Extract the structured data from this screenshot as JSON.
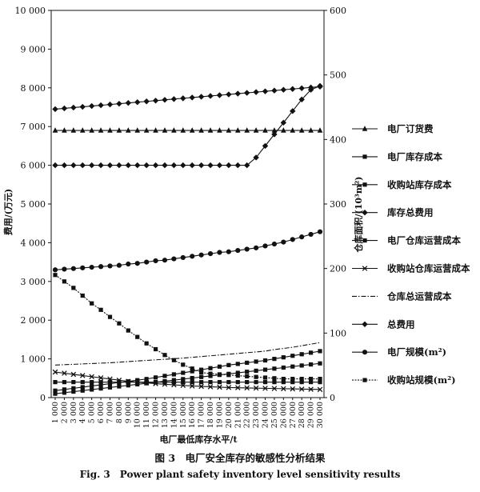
{
  "chart_data": {
    "type": "line",
    "xlabel": "电厂最低库存水平/t",
    "ylabel_left": "费用/(万元)",
    "ylabel_right": "仓库面积/(10³m²)",
    "categories": [
      "1 000",
      "2 000",
      "3 000",
      "4 000",
      "5 000",
      "6 000",
      "7 000",
      "8 000",
      "9 000",
      "10 000",
      "11 000",
      "12 000",
      "13 000",
      "14 000",
      "15 000",
      "16 000",
      "17 000",
      "18 000",
      "19 000",
      "20 000",
      "21 000",
      "22 000",
      "23 000",
      "24 000",
      "25 000",
      "26 000",
      "27 000",
      "28 000",
      "29 000",
      "30 000"
    ],
    "ylim_left": [
      0,
      10000
    ],
    "ylim_right": [
      0,
      600
    ],
    "left_ticks": [
      "0",
      "1 000",
      "2 000",
      "3 000",
      "4 000",
      "5 000",
      "6 000",
      "7 000",
      "8 000",
      "9 000",
      "10 000"
    ],
    "right_ticks": [
      "0",
      "100",
      "200",
      "300",
      "400",
      "500",
      "600"
    ],
    "legend_position": "right",
    "grid": false,
    "series": [
      {
        "name": "电厂订货费",
        "axis": "left",
        "marker": "triangle",
        "values": [
          6900,
          6900,
          6900,
          6900,
          6900,
          6900,
          6900,
          6900,
          6900,
          6900,
          6900,
          6900,
          6900,
          6900,
          6900,
          6900,
          6900,
          6900,
          6900,
          6900,
          6900,
          6900,
          6900,
          6900,
          6900,
          6900,
          6900,
          6900,
          6900,
          6900
        ]
      },
      {
        "name": "电厂库存成本",
        "axis": "left",
        "marker": "square",
        "values": [
          100,
          127,
          154,
          181,
          208,
          235,
          262,
          289,
          316,
          343,
          370,
          397,
          424,
          451,
          478,
          505,
          532,
          559,
          586,
          613,
          640,
          667,
          694,
          721,
          748,
          775,
          802,
          829,
          856,
          883
        ]
      },
      {
        "name": "收购站库存成本",
        "axis": "left",
        "marker": "square",
        "values": [
          400,
          400,
          400,
          400,
          400,
          400,
          400,
          400,
          400,
          400,
          400,
          400,
          400,
          400,
          400,
          400,
          400,
          400,
          400,
          400,
          400,
          400,
          400,
          400,
          400,
          400,
          400,
          400,
          400,
          400
        ]
      },
      {
        "name": "库存总费用",
        "axis": "left",
        "marker": "diamond",
        "values": [
          7450,
          7470,
          7490,
          7510,
          7530,
          7550,
          7570,
          7590,
          7610,
          7630,
          7650,
          7670,
          7690,
          7710,
          7730,
          7750,
          7770,
          7790,
          7810,
          7830,
          7850,
          7870,
          7890,
          7910,
          7930,
          7950,
          7970,
          7990,
          8010,
          8030
        ]
      },
      {
        "name": "电厂仓库运营成本",
        "axis": "left",
        "marker": "square",
        "values": [
          180,
          210,
          240,
          270,
          300,
          330,
          360,
          390,
          420,
          450,
          480,
          520,
          560,
          600,
          640,
          680,
          720,
          760,
          800,
          840,
          870,
          900,
          930,
          960,
          1000,
          1040,
          1080,
          1120,
          1160,
          1200
        ]
      },
      {
        "name": "收购站仓库运营成本",
        "axis": "left",
        "marker": "x",
        "values": [
          660,
          630,
          600,
          570,
          540,
          510,
          480,
          450,
          420,
          400,
          380,
          360,
          345,
          330,
          315,
          300,
          290,
          280,
          270,
          260,
          255,
          250,
          245,
          240,
          235,
          230,
          225,
          220,
          215,
          210
        ]
      },
      {
        "name": "仓库总运营成本",
        "axis": "left",
        "marker": "none",
        "values": [
          840,
          850,
          860,
          870,
          880,
          890,
          900,
          915,
          930,
          945,
          960,
          975,
          990,
          1005,
          1020,
          1040,
          1060,
          1080,
          1100,
          1120,
          1140,
          1160,
          1180,
          1200,
          1240,
          1270,
          1300,
          1340,
          1380,
          1420
        ]
      },
      {
        "name": "总费用",
        "axis": "left",
        "marker": "diamond",
        "values": [
          6000,
          6000,
          6000,
          6000,
          6000,
          6000,
          6000,
          6000,
          6000,
          6000,
          6000,
          6000,
          6000,
          6000,
          6000,
          6000,
          6000,
          6000,
          6000,
          6000,
          6000,
          6000,
          6200,
          6500,
          6800,
          7100,
          7400,
          7700,
          7950,
          8050
        ]
      },
      {
        "name": "电厂规模(m²)",
        "axis": "right",
        "marker": "circle",
        "values": [
          198,
          199,
          200,
          201,
          202,
          203,
          204,
          205,
          207,
          208,
          210,
          212,
          213,
          215,
          217,
          219,
          221,
          223,
          225,
          226,
          228,
          230,
          232,
          235,
          238,
          241,
          245,
          249,
          253,
          257
        ]
      },
      {
        "name": "收购站规模(m²)",
        "axis": "right",
        "marker": "square",
        "values": [
          190,
          180,
          170,
          158,
          146,
          136,
          125,
          115,
          104,
          94,
          84,
          75,
          66,
          58,
          51,
          45,
          39,
          37,
          36,
          35,
          34,
          33,
          32,
          31,
          30,
          29,
          29,
          29,
          29,
          29
        ]
      }
    ]
  },
  "caption": {
    "cn": "图 3　电厂安全库存的敏感性分析结果",
    "en": "Fig. 3　Power plant safety inventory level sensitivity results"
  }
}
